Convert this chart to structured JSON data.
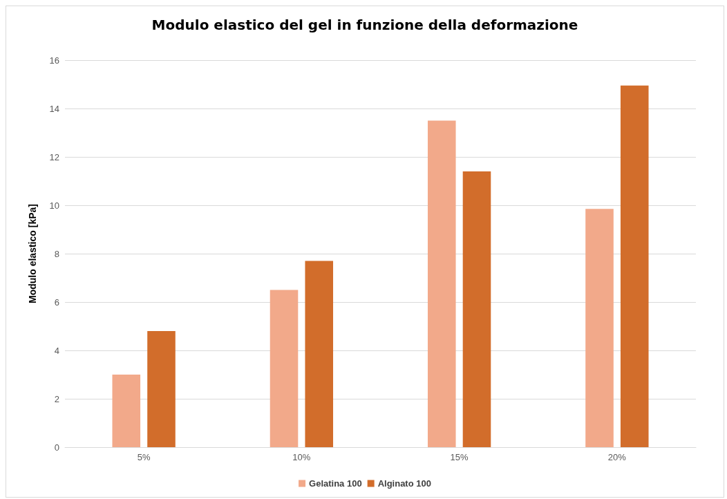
{
  "chart_data": {
    "type": "bar",
    "title": "Modulo elastico del gel in funzione della deformazione",
    "ylabel": "Modulo elastico [kPa]",
    "categories": [
      "5%",
      "10%",
      "15%",
      "20%"
    ],
    "series": [
      {
        "name": "Gelatina 100",
        "color": "#f2a98a",
        "values": [
          3.0,
          6.5,
          13.5,
          9.85
        ]
      },
      {
        "name": "Alginato 100",
        "color": "#d26d2b",
        "values": [
          4.8,
          7.7,
          11.4,
          14.95
        ]
      }
    ],
    "ylim": [
      0,
      16
    ],
    "yticks": [
      0,
      2,
      4,
      6,
      8,
      10,
      12,
      14,
      16
    ],
    "grid": "y",
    "legend": "bottom"
  }
}
